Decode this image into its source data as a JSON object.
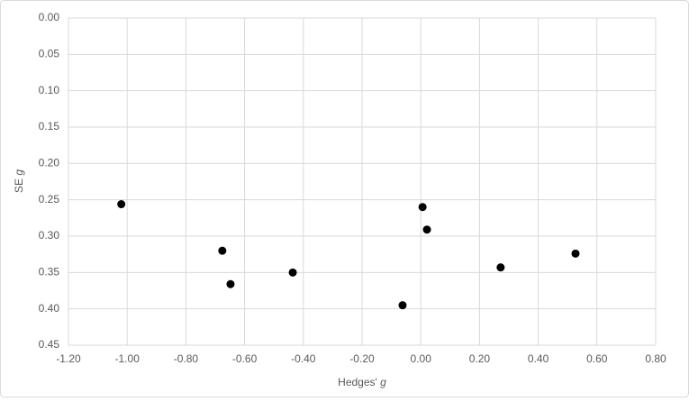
{
  "chart_data": {
    "type": "scatter",
    "x_label": [
      "Hedges'",
      "g"
    ],
    "y_label": [
      "SE",
      "g"
    ],
    "x": [
      -1.02,
      -0.676,
      -0.648,
      -0.436,
      -0.062,
      0.006,
      0.021,
      0.272,
      0.527
    ],
    "values": [
      0.256,
      0.32,
      0.366,
      0.35,
      0.395,
      0.26,
      0.291,
      0.343,
      0.324
    ],
    "color": "#000000",
    "xlim": [
      -1.2,
      0.8
    ],
    "xticks": [
      {
        "value": -1.2,
        "label": "-1.20"
      },
      {
        "value": -1.0,
        "label": "-1.00"
      },
      {
        "value": -0.8,
        "label": "-0.80"
      },
      {
        "value": -0.6,
        "label": "-0.60"
      },
      {
        "value": -0.4,
        "label": "-0.40"
      },
      {
        "value": -0.2,
        "label": "-0.20"
      },
      {
        "value": 0,
        "label": "0.00"
      },
      {
        "value": 0.2,
        "label": "0.20"
      },
      {
        "value": 0.4,
        "label": "0.40"
      },
      {
        "value": 0.6,
        "label": "0.60"
      },
      {
        "value": 0.8,
        "label": "0.80"
      }
    ],
    "ylim": [
      0,
      0.45
    ],
    "y_inverted": true,
    "yticks": [
      {
        "value": 0,
        "label": "0.00"
      },
      {
        "value": 0.05,
        "label": "0.05"
      },
      {
        "value": 0.1,
        "label": "0.10"
      },
      {
        "value": 0.15,
        "label": "0.15"
      },
      {
        "value": 0.2,
        "label": "0.20"
      },
      {
        "value": 0.25,
        "label": "0.25"
      },
      {
        "value": 0.3,
        "label": "0.30"
      },
      {
        "value": 0.35,
        "label": "0.35"
      },
      {
        "value": 0.4,
        "label": "0.40"
      },
      {
        "value": 0.45,
        "label": "0.45"
      }
    ],
    "grid": true
  }
}
